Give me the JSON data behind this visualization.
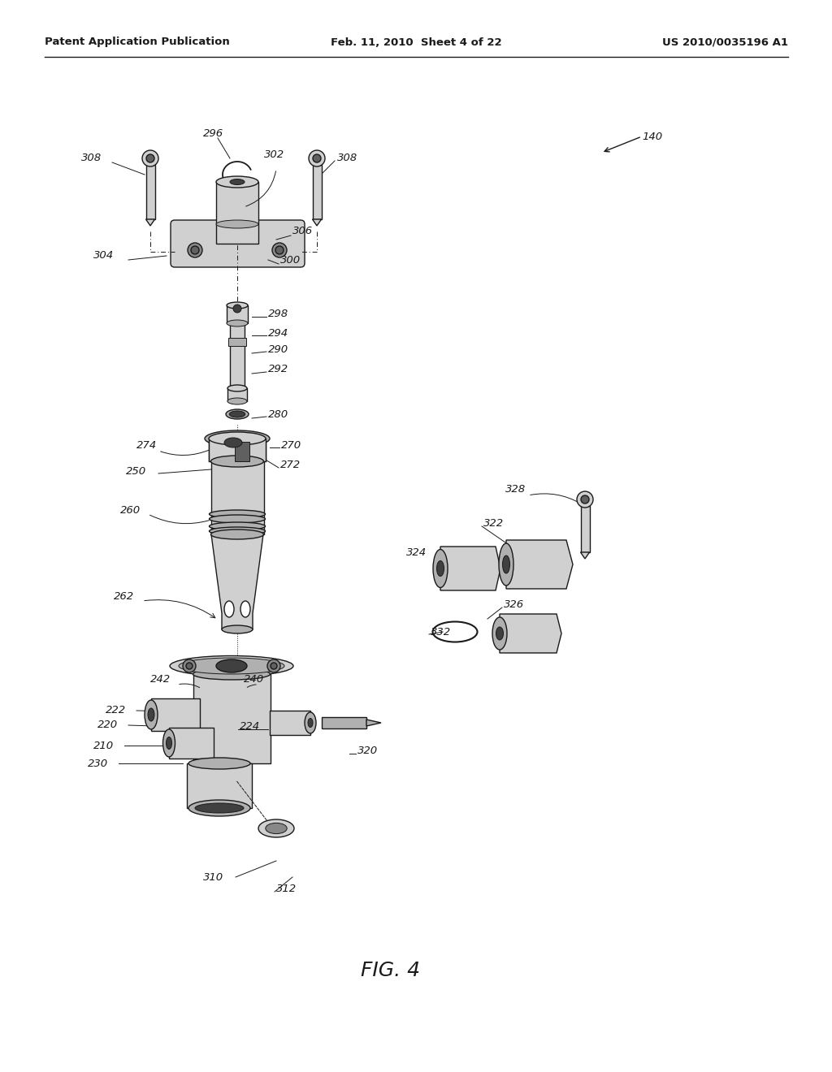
{
  "title": "FIG. 4",
  "header_left": "Patent Application Publication",
  "header_center": "Feb. 11, 2010  Sheet 4 of 22",
  "header_right": "US 2010/0035196 A1",
  "bg": "#ffffff",
  "lc": "#1a1a1a",
  "gray1": "#d0d0d0",
  "gray2": "#b0b0b0",
  "gray3": "#888888",
  "gray4": "#606060",
  "gray5": "#404040"
}
